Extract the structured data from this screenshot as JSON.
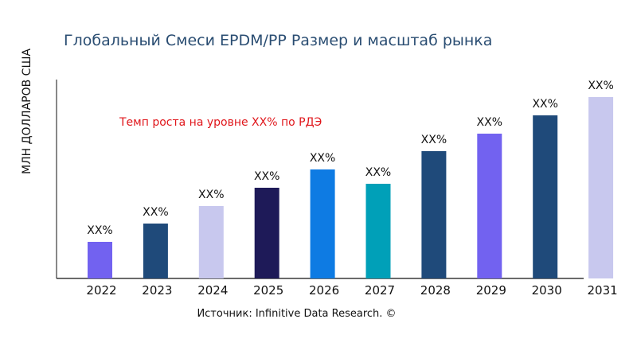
{
  "chart_data": {
    "type": "bar",
    "title": "Глобальный Смеси EPDM/PP Размер и масштаб рынка",
    "ylabel": "МЛН ДОЛЛАРОВ США",
    "xlabel": "",
    "categories": [
      "2022",
      "2023",
      "2024",
      "2025",
      "2026",
      "2027",
      "2028",
      "2029",
      "2030",
      "2031"
    ],
    "values": [
      46,
      69,
      91,
      114,
      137,
      119,
      160,
      182,
      205,
      228
    ],
    "data_labels": [
      "XX%",
      "XX%",
      "XX%",
      "XX%",
      "XX%",
      "XX%",
      "XX%",
      "XX%",
      "XX%",
      "XX%"
    ],
    "colors": [
      "#7262f0",
      "#1f4a7a",
      "#c8c8ee",
      "#1e1a58",
      "#0e7be3",
      "#00a0b8",
      "#1f4a7a",
      "#7262f0",
      "#1f4a7a",
      "#c8c8ee"
    ],
    "annotation": "Темп роста на уровне XX% по РДЭ",
    "source": "Источник: Infinitive Data Research. ©",
    "grid": false,
    "legend": "none"
  }
}
